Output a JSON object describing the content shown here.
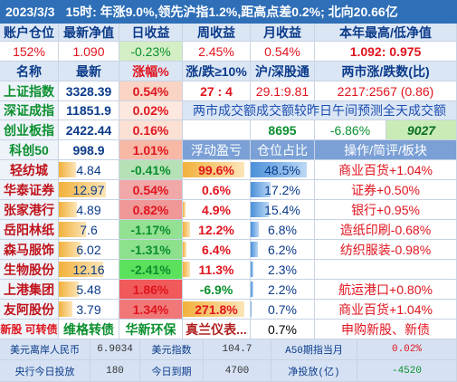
{
  "header": {
    "date": "2023/3/3",
    "summary": "15时: 年涨9.0%,领先沪指1.2%,距高点差0.2%; 北向20.66亿"
  },
  "account": {
    "labels": [
      "账户仓位",
      "最新净值",
      "日收益",
      "周收益",
      "月收益",
      "本年最高/低净值"
    ],
    "values": [
      "152%",
      "1.090",
      "-0.23%",
      "2.45%",
      "0.54%",
      "1.092: 0.975"
    ]
  },
  "index_header": [
    "名称",
    "最新",
    "涨幅%",
    "涨/跌≥10%",
    "沪/深股通",
    "两市涨/跌数(比)"
  ],
  "indices": [
    {
      "name": "上证指数",
      "last": "3328.39",
      "chg": "0.54%",
      "c4": "27  :  4",
      "c5": "29.1:9.81",
      "c6": "2217:2567 (0.86)"
    },
    {
      "name": "深证成指",
      "last": "11851.9",
      "chg": "0.02%",
      "c4": "两市成交额成交额较昨日午间预测全天成交额"
    },
    {
      "name": "创业板指",
      "last": "2422.44",
      "chg": "0.16%",
      "c4": "",
      "c5": "8695",
      "c6": "-6.86%",
      "c7": "9027"
    },
    {
      "name": "科创50",
      "last": "998.9",
      "chg": "1.01%",
      "c4": "浮动盈亏",
      "c5": "仓位占比",
      "c6": "操作/简评/板块"
    }
  ],
  "holdings": [
    {
      "name": "轻纺城",
      "last": "4.84",
      "chg": "-0.41%",
      "pnl": "99.6%",
      "pos": "48.5%",
      "note": "商业百货+1.04%"
    },
    {
      "name": "华泰证券",
      "last": "12.97",
      "chg": "0.54%",
      "pnl": "0.6%",
      "pos": "17.2%",
      "note": "证券+0.50%"
    },
    {
      "name": "张家港行",
      "last": "4.89",
      "chg": "0.82%",
      "pnl": "4.9%",
      "pos": "15.4%",
      "note": "银行+0.95%"
    },
    {
      "name": "岳阳林纸",
      "last": "7.6",
      "chg": "-1.17%",
      "pnl": "12.2%",
      "pos": "6.8%",
      "note": "造纸印刷-0.68%"
    },
    {
      "name": "森马服饰",
      "last": "6.02",
      "chg": "-1.31%",
      "pnl": "6.4%",
      "pos": "6.2%",
      "note": "纺织服装-0.98%"
    },
    {
      "name": "生物股份",
      "last": "12.16",
      "chg": "-2.41%",
      "pnl": "11.3%",
      "pos": "2.3%",
      "note": ""
    },
    {
      "name": "上港集团",
      "last": "5.48",
      "chg": "1.86%",
      "pnl": "-6.9%",
      "pos": "2.2%",
      "note": "航运港口+0.80%"
    },
    {
      "name": "友阿股份",
      "last": "3.79",
      "chg": "1.34%",
      "pnl": "271.8%",
      "pos": "0.7%",
      "note": "商业百货+1.04%"
    }
  ],
  "new_stock": {
    "label": "新股 可转债",
    "c2": "维格转债",
    "c3": "华新环保",
    "c4": "真兰仪表...",
    "c5": "0.7%",
    "c6": "申购新股、新债"
  },
  "footer": [
    {
      "k1": "美元离岸人民币",
      "v1": "6.9034",
      "k2": "美元指数",
      "v2": "104.7",
      "k3": "A50期指当月",
      "v3": "0.02%"
    },
    {
      "k1": "央行今日投放",
      "v1": "180",
      "k2": "今日到期",
      "v2": "4700",
      "k3": "净投放(亿)",
      "v3": "-4520"
    }
  ]
}
